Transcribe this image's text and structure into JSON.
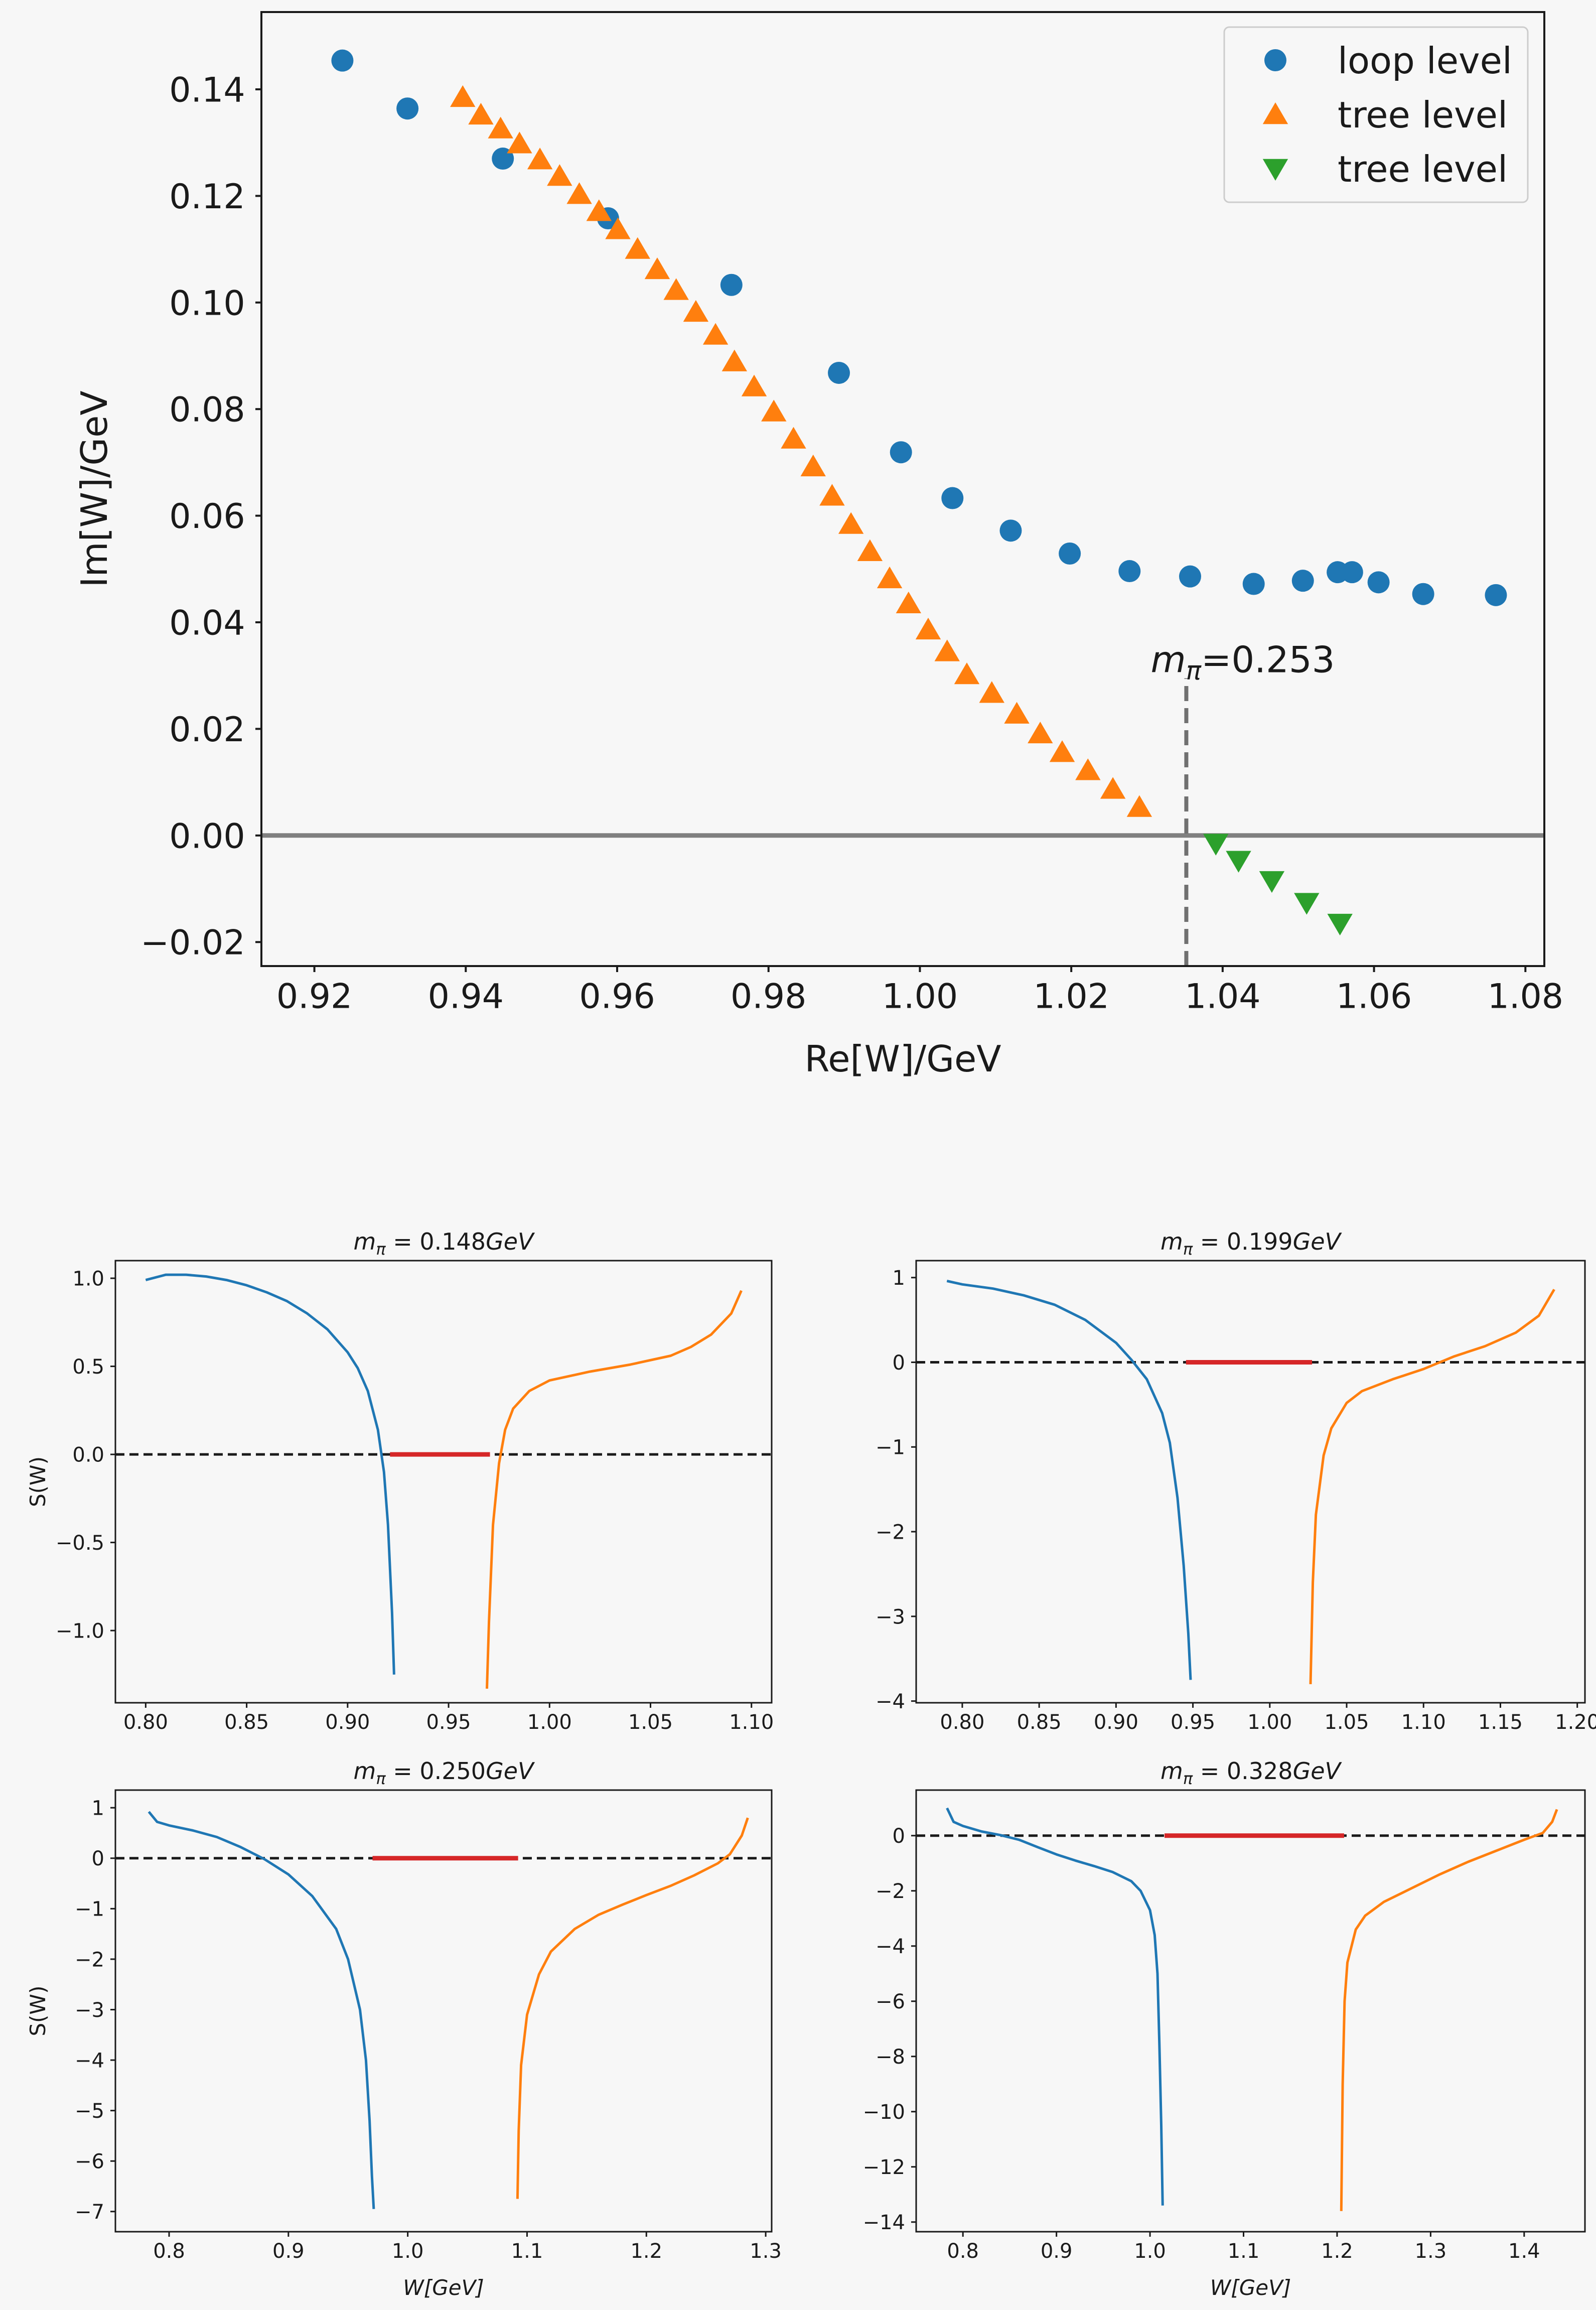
{
  "chart_data": [
    {
      "id": "main",
      "type": "scatter",
      "xlabel": "Re[W]/GeV",
      "ylabel": "Im[W]/GeV",
      "xlim": [
        0.913,
        1.0825
      ],
      "ylim": [
        -0.0245,
        0.1545
      ],
      "xticks": [
        0.92,
        0.94,
        0.96,
        0.98,
        1.0,
        1.02,
        1.04,
        1.06,
        1.08
      ],
      "xticklabels": [
        "0.92",
        "0.94",
        "0.96",
        "0.98",
        "1.00",
        "1.02",
        "1.04",
        "1.06",
        "1.08"
      ],
      "yticks": [
        -0.02,
        0.0,
        0.02,
        0.04,
        0.06,
        0.08,
        0.1,
        0.12,
        0.14
      ],
      "yticklabels": [
        "−0.02",
        "0.00",
        "0.02",
        "0.04",
        "0.06",
        "0.08",
        "0.10",
        "0.12",
        "0.14"
      ],
      "grid": false,
      "legend_position": "top-right",
      "colors": {
        "loop": "#1f77b4",
        "tree_up": "#ff7f0e",
        "tree_down": "#2ca02c",
        "hline": "#808080",
        "vline": "#707070"
      },
      "hline_y": 0.0,
      "vline": {
        "x": 1.0352,
        "y_from": -0.0245,
        "y_to": 0.0295
      },
      "annotation": {
        "label": "m",
        "sub": "π",
        "value": "=0.253",
        "x": 1.0305,
        "y": 0.0295
      },
      "series": [
        {
          "name": "loop level",
          "marker": "circle",
          "color": "#1f77b4",
          "points": [
            [
              0.9237,
              0.1454
            ],
            [
              0.9323,
              0.1364
            ],
            [
              0.9449,
              0.127
            ],
            [
              0.9588,
              0.1158
            ],
            [
              0.9751,
              0.1033
            ],
            [
              0.9893,
              0.0868
            ],
            [
              0.9975,
              0.0719
            ],
            [
              1.0043,
              0.0633
            ],
            [
              1.012,
              0.0572
            ],
            [
              1.0198,
              0.0529
            ],
            [
              1.0277,
              0.0496
            ],
            [
              1.0357,
              0.0486
            ],
            [
              1.0441,
              0.0472
            ],
            [
              1.0506,
              0.0478
            ],
            [
              1.0552,
              0.0494
            ],
            [
              1.0571,
              0.0494
            ],
            [
              1.0606,
              0.0475
            ],
            [
              1.0665,
              0.0453
            ],
            [
              1.0761,
              0.0451
            ]
          ]
        },
        {
          "name": "tree level",
          "marker": "triangle-up",
          "color": "#ff7f0e",
          "points": [
            [
              0.9396,
              0.1385
            ],
            [
              0.942,
              0.1352
            ],
            [
              0.9446,
              0.1326
            ],
            [
              0.9471,
              0.1298
            ],
            [
              0.9498,
              0.1268
            ],
            [
              0.9524,
              0.1237
            ],
            [
              0.955,
              0.1203
            ],
            [
              0.9576,
              0.1171
            ],
            [
              0.9601,
              0.1137
            ],
            [
              0.9627,
              0.11
            ],
            [
              0.9653,
              0.1062
            ],
            [
              0.9678,
              0.1023
            ],
            [
              0.9704,
              0.0982
            ],
            [
              0.973,
              0.0939
            ],
            [
              0.9755,
              0.0889
            ],
            [
              0.9781,
              0.0842
            ],
            [
              0.9807,
              0.0795
            ],
            [
              0.9833,
              0.0744
            ],
            [
              0.9859,
              0.0692
            ],
            [
              0.9884,
              0.0637
            ],
            [
              0.9909,
              0.0584
            ],
            [
              0.9934,
              0.0533
            ],
            [
              0.996,
              0.0482
            ],
            [
              0.9985,
              0.0435
            ],
            [
              1.0011,
              0.0386
            ],
            [
              1.0036,
              0.0345
            ],
            [
              1.0062,
              0.0302
            ],
            [
              1.0095,
              0.0267
            ],
            [
              1.0128,
              0.0228
            ],
            [
              1.0159,
              0.0191
            ],
            [
              1.0188,
              0.0156
            ],
            [
              1.0222,
              0.0122
            ],
            [
              1.0255,
              0.0087
            ],
            [
              1.029,
              0.0053
            ]
          ]
        },
        {
          "name": "tree level",
          "marker": "triangle-down",
          "color": "#2ca02c",
          "points": [
            [
              1.0391,
              -0.0015
            ],
            [
              1.0421,
              -0.0047
            ],
            [
              1.0465,
              -0.0085
            ],
            [
              1.0511,
              -0.0126
            ],
            [
              1.0555,
              -0.0165
            ]
          ]
        }
      ]
    },
    {
      "id": "p1",
      "type": "line",
      "title_main": "m",
      "title_sub": "π",
      "title_rest": " = 0.148",
      "title_unit": "GeV",
      "ylabel": "S(W)",
      "xlabel": "",
      "xlim": [
        0.785,
        1.11
      ],
      "ylim": [
        -1.41,
        1.1
      ],
      "xticks": [
        0.8,
        0.85,
        0.9,
        0.95,
        1.0,
        1.05,
        1.1
      ],
      "xticklabels": [
        "0.80",
        "0.85",
        "0.90",
        "0.95",
        "1.00",
        "1.05",
        "1.10"
      ],
      "yticks": [
        1.0,
        0.5,
        0.0,
        -0.5,
        -1.0
      ],
      "yticklabels": [
        "1.0",
        "0.5",
        "0.0",
        "−0.5",
        "−1.0"
      ],
      "dashed_y": 0.0,
      "red_segment": [
        0.921,
        0.9705
      ],
      "series": [
        {
          "color": "#1f77b4",
          "points": [
            [
              0.8,
              0.99
            ],
            [
              0.81,
              1.02
            ],
            [
              0.82,
              1.02
            ],
            [
              0.83,
              1.01
            ],
            [
              0.84,
              0.99
            ],
            [
              0.85,
              0.96
            ],
            [
              0.86,
              0.92
            ],
            [
              0.87,
              0.87
            ],
            [
              0.88,
              0.8
            ],
            [
              0.89,
              0.71
            ],
            [
              0.9,
              0.58
            ],
            [
              0.905,
              0.49
            ],
            [
              0.91,
              0.36
            ],
            [
              0.915,
              0.14
            ],
            [
              0.918,
              -0.1
            ],
            [
              0.92,
              -0.4
            ],
            [
              0.922,
              -0.9
            ],
            [
              0.923,
              -1.25
            ]
          ]
        },
        {
          "color": "#ff7f0e",
          "points": [
            [
              0.969,
              -1.33
            ],
            [
              0.97,
              -0.95
            ],
            [
              0.972,
              -0.4
            ],
            [
              0.975,
              -0.05
            ],
            [
              0.978,
              0.14
            ],
            [
              0.982,
              0.26
            ],
            [
              0.99,
              0.36
            ],
            [
              1.0,
              0.42
            ],
            [
              1.02,
              0.47
            ],
            [
              1.04,
              0.51
            ],
            [
              1.06,
              0.56
            ],
            [
              1.07,
              0.61
            ],
            [
              1.08,
              0.68
            ],
            [
              1.09,
              0.8
            ],
            [
              1.095,
              0.93
            ]
          ]
        }
      ]
    },
    {
      "id": "p2",
      "type": "line",
      "title_main": "m",
      "title_sub": "π",
      "title_rest": " = 0.199",
      "title_unit": "GeV",
      "ylabel": "",
      "xlabel": "",
      "xlim": [
        0.77,
        1.205
      ],
      "ylim": [
        -4.02,
        1.2
      ],
      "xticks": [
        0.8,
        0.85,
        0.9,
        0.95,
        1.0,
        1.05,
        1.1,
        1.15,
        1.2
      ],
      "xticklabels": [
        "0.80",
        "0.85",
        "0.90",
        "0.95",
        "1.00",
        "1.05",
        "1.10",
        "1.15",
        "1.20"
      ],
      "yticks": [
        1,
        0,
        -1,
        -2,
        -3,
        -4
      ],
      "yticklabels": [
        "1",
        "0",
        "−1",
        "−2",
        "−3",
        "−4"
      ],
      "dashed_y": 0.0,
      "red_segment": [
        0.9455,
        1.0275
      ],
      "series": [
        {
          "color": "#1f77b4",
          "points": [
            [
              0.79,
              0.96
            ],
            [
              0.8,
              0.92
            ],
            [
              0.82,
              0.87
            ],
            [
              0.84,
              0.79
            ],
            [
              0.86,
              0.68
            ],
            [
              0.88,
              0.5
            ],
            [
              0.9,
              0.23
            ],
            [
              0.91,
              0.03
            ],
            [
              0.92,
              -0.2
            ],
            [
              0.93,
              -0.6
            ],
            [
              0.935,
              -0.95
            ],
            [
              0.94,
              -1.6
            ],
            [
              0.944,
              -2.4
            ],
            [
              0.947,
              -3.2
            ],
            [
              0.9485,
              -3.75
            ]
          ]
        },
        {
          "color": "#ff7f0e",
          "points": [
            [
              1.0265,
              -3.8
            ],
            [
              1.028,
              -2.6
            ],
            [
              1.03,
              -1.8
            ],
            [
              1.035,
              -1.1
            ],
            [
              1.04,
              -0.78
            ],
            [
              1.05,
              -0.48
            ],
            [
              1.06,
              -0.34
            ],
            [
              1.08,
              -0.2
            ],
            [
              1.1,
              -0.08
            ],
            [
              1.12,
              0.07
            ],
            [
              1.14,
              0.19
            ],
            [
              1.16,
              0.35
            ],
            [
              1.175,
              0.55
            ],
            [
              1.185,
              0.86
            ]
          ]
        }
      ]
    },
    {
      "id": "p3",
      "type": "line",
      "title_main": "m",
      "title_sub": "π",
      "title_rest": " = 0.250",
      "title_unit": "GeV",
      "ylabel": "S(W)",
      "xlabel": "W[GeV]",
      "xlim": [
        0.755,
        1.305
      ],
      "ylim": [
        -7.4,
        1.35
      ],
      "xticks": [
        0.8,
        0.9,
        1.0,
        1.1,
        1.2,
        1.3
      ],
      "xticklabels": [
        "0.8",
        "0.9",
        "1.0",
        "1.1",
        "1.2",
        "1.3"
      ],
      "yticks": [
        1,
        0,
        -1,
        -2,
        -3,
        -4,
        -5,
        -6,
        -7
      ],
      "yticklabels": [
        "1",
        "0",
        "−1",
        "−2",
        "−3",
        "−4",
        "−5",
        "−6",
        "−7"
      ],
      "dashed_y": 0.0,
      "red_segment": [
        0.9705,
        1.0925
      ],
      "series": [
        {
          "color": "#1f77b4",
          "points": [
            [
              0.783,
              0.92
            ],
            [
              0.79,
              0.72
            ],
            [
              0.8,
              0.65
            ],
            [
              0.82,
              0.55
            ],
            [
              0.84,
              0.42
            ],
            [
              0.86,
              0.22
            ],
            [
              0.88,
              -0.02
            ],
            [
              0.9,
              -0.32
            ],
            [
              0.92,
              -0.75
            ],
            [
              0.94,
              -1.4
            ],
            [
              0.95,
              -2.0
            ],
            [
              0.96,
              -3.0
            ],
            [
              0.965,
              -4.0
            ],
            [
              0.968,
              -5.2
            ],
            [
              0.97,
              -6.3
            ],
            [
              0.9715,
              -6.95
            ]
          ]
        },
        {
          "color": "#ff7f0e",
          "points": [
            [
              1.092,
              -6.75
            ],
            [
              1.093,
              -5.4
            ],
            [
              1.095,
              -4.1
            ],
            [
              1.1,
              -3.1
            ],
            [
              1.11,
              -2.3
            ],
            [
              1.12,
              -1.85
            ],
            [
              1.14,
              -1.4
            ],
            [
              1.16,
              -1.12
            ],
            [
              1.18,
              -0.92
            ],
            [
              1.2,
              -0.73
            ],
            [
              1.22,
              -0.55
            ],
            [
              1.24,
              -0.34
            ],
            [
              1.26,
              -0.1
            ],
            [
              1.27,
              0.08
            ],
            [
              1.28,
              0.45
            ],
            [
              1.285,
              0.8
            ]
          ]
        }
      ]
    },
    {
      "id": "p4",
      "type": "line",
      "title_main": "m",
      "title_sub": "π",
      "title_rest": " = 0.328",
      "title_unit": "GeV",
      "ylabel": "",
      "xlabel": "W[GeV]",
      "xlim": [
        0.75,
        1.465
      ],
      "ylim": [
        -14.35,
        1.65
      ],
      "xticks": [
        0.8,
        0.9,
        1.0,
        1.1,
        1.2,
        1.3,
        1.4
      ],
      "xticklabels": [
        "0.8",
        "0.9",
        "1.0",
        "1.1",
        "1.2",
        "1.3",
        "1.4"
      ],
      "yticks": [
        0,
        -2,
        -4,
        -6,
        -8,
        -10,
        -12,
        -14
      ],
      "yticklabels": [
        "0",
        "−2",
        "−4",
        "−6",
        "−8",
        "−10",
        "−12",
        "−14"
      ],
      "dashed_y": 0.0,
      "red_segment": [
        1.0155,
        1.2075
      ],
      "series": [
        {
          "color": "#1f77b4",
          "points": [
            [
              0.783,
              1.0
            ],
            [
              0.79,
              0.5
            ],
            [
              0.8,
              0.35
            ],
            [
              0.82,
              0.15
            ],
            [
              0.84,
              0.02
            ],
            [
              0.86,
              -0.15
            ],
            [
              0.88,
              -0.42
            ],
            [
              0.9,
              -0.68
            ],
            [
              0.92,
              -0.9
            ],
            [
              0.94,
              -1.1
            ],
            [
              0.96,
              -1.32
            ],
            [
              0.98,
              -1.65
            ],
            [
              0.99,
              -2.0
            ],
            [
              1.0,
              -2.7
            ],
            [
              1.005,
              -3.6
            ],
            [
              1.008,
              -5.0
            ],
            [
              1.01,
              -7.5
            ],
            [
              1.012,
              -10.5
            ],
            [
              1.0135,
              -13.4
            ]
          ]
        },
        {
          "color": "#ff7f0e",
          "points": [
            [
              1.2045,
              -13.6
            ],
            [
              1.206,
              -9.0
            ],
            [
              1.208,
              -6.0
            ],
            [
              1.211,
              -4.6
            ],
            [
              1.22,
              -3.4
            ],
            [
              1.23,
              -2.9
            ],
            [
              1.25,
              -2.4
            ],
            [
              1.28,
              -1.9
            ],
            [
              1.31,
              -1.4
            ],
            [
              1.34,
              -0.95
            ],
            [
              1.37,
              -0.55
            ],
            [
              1.4,
              -0.15
            ],
            [
              1.42,
              0.1
            ],
            [
              1.43,
              0.5
            ],
            [
              1.435,
              0.95
            ]
          ]
        }
      ]
    }
  ]
}
